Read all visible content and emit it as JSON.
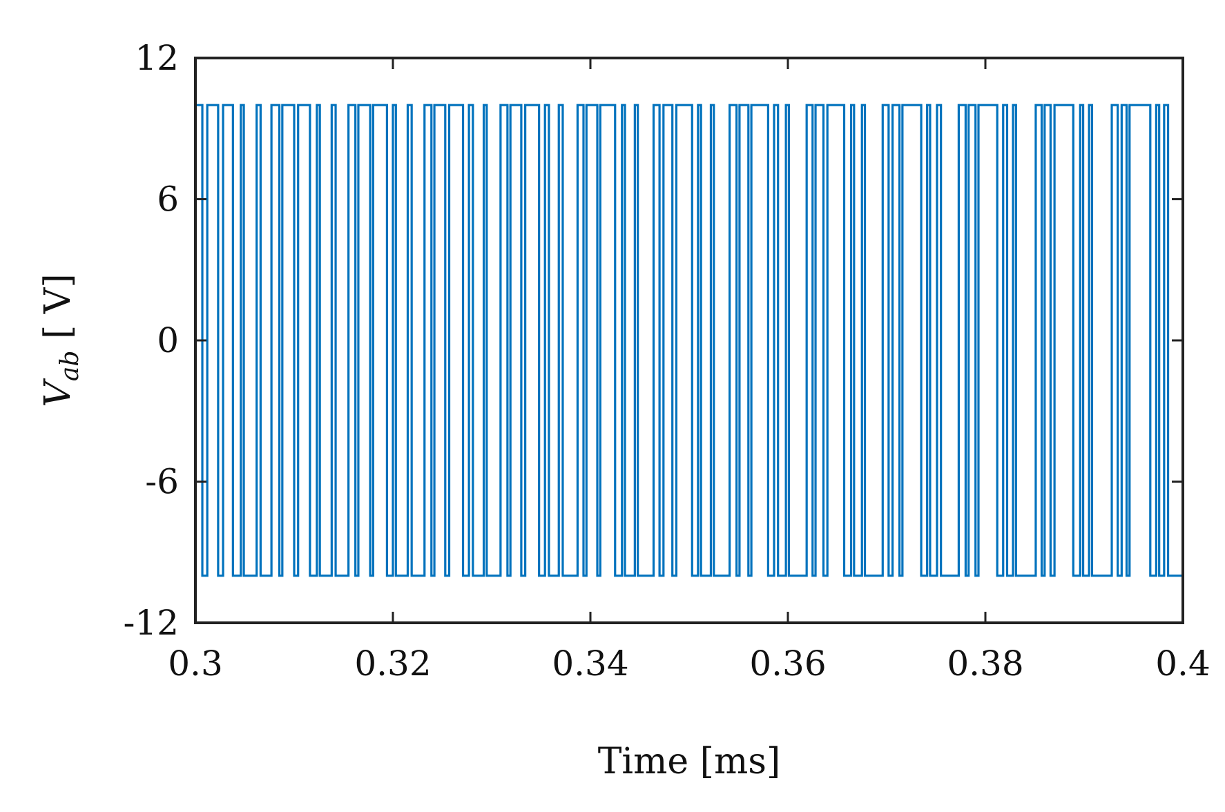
{
  "chart_data": {
    "type": "line",
    "title": "",
    "xlabel": "Time [ms]",
    "ylabel": {
      "var": "V",
      "sub": "ab",
      "unit": " [ V]"
    },
    "xlim": [
      0.3,
      0.4
    ],
    "ylim": [
      -12,
      12
    ],
    "xticks": [
      0.3,
      0.32,
      0.34,
      0.36,
      0.38,
      0.4
    ],
    "xtick_labels": [
      "0.3",
      "0.32",
      "0.34",
      "0.36",
      "0.38",
      "0.4"
    ],
    "yticks": [
      12,
      6,
      0,
      -6,
      -12
    ],
    "ytick_labels": [
      "12",
      "6",
      "0",
      "-6",
      "-12"
    ],
    "grid": false,
    "box": true,
    "series": [
      {
        "color": "#0072BD",
        "high": 10,
        "low": -10,
        "transitions": [
          [
            0.3,
            0.3007,
            0.3012,
            0.3023,
            0.3028
          ],
          [
            0.3038,
            0.3046,
            0.3049,
            0.3062,
            0.3066
          ],
          [
            0.3077,
            0.3085,
            0.3088,
            0.31,
            0.3104
          ],
          [
            0.3116,
            0.3123,
            0.3126,
            0.3138,
            0.3142
          ],
          [
            0.3155,
            0.3162,
            0.3165,
            0.3177,
            0.318
          ],
          [
            0.3194,
            0.32,
            0.3203,
            0.3215,
            0.3219
          ],
          [
            0.3232,
            0.3239,
            0.3242,
            0.3253,
            0.3257
          ],
          [
            0.3271,
            0.3277,
            0.3281,
            0.3292,
            0.3295
          ],
          [
            0.3309,
            0.3316,
            0.3319,
            0.333,
            0.3334
          ],
          [
            0.3348,
            0.3354,
            0.3358,
            0.3368,
            0.3372
          ],
          [
            0.3387,
            0.3393,
            0.3396,
            0.3407,
            0.341
          ],
          [
            0.3425,
            0.3432,
            0.3435,
            0.3445,
            0.3448
          ],
          [
            0.3464,
            0.347,
            0.3474,
            0.3483,
            0.3487
          ],
          [
            0.3503,
            0.3509,
            0.3512,
            0.3522,
            0.3525
          ],
          [
            0.3541,
            0.3548,
            0.3551,
            0.356,
            0.3563
          ],
          [
            0.358,
            0.3586,
            0.359,
            0.3598,
            0.3601
          ],
          [
            0.3619,
            0.3625,
            0.3628,
            0.3636,
            0.364
          ],
          [
            0.3657,
            0.3664,
            0.3667,
            0.3675,
            0.3678
          ],
          [
            0.3696,
            0.3702,
            0.3706,
            0.3713,
            0.3716
          ],
          [
            0.3735,
            0.3741,
            0.3744,
            0.3751,
            0.3755
          ],
          [
            0.3773,
            0.378,
            0.3783,
            0.379,
            0.3793
          ],
          [
            0.3812,
            0.3818,
            0.3822,
            0.3828,
            0.3831
          ],
          [
            0.3851,
            0.3857,
            0.386,
            0.3866,
            0.387
          ],
          [
            0.3889,
            0.3896,
            0.3899,
            0.3905,
            0.3908
          ],
          [
            0.3928,
            0.3934,
            0.3938,
            0.3943,
            0.3946
          ],
          [
            0.3967,
            0.3973,
            0.3976,
            0.3981,
            0.3985
          ],
          [
            0.4
          ]
        ]
      }
    ]
  }
}
